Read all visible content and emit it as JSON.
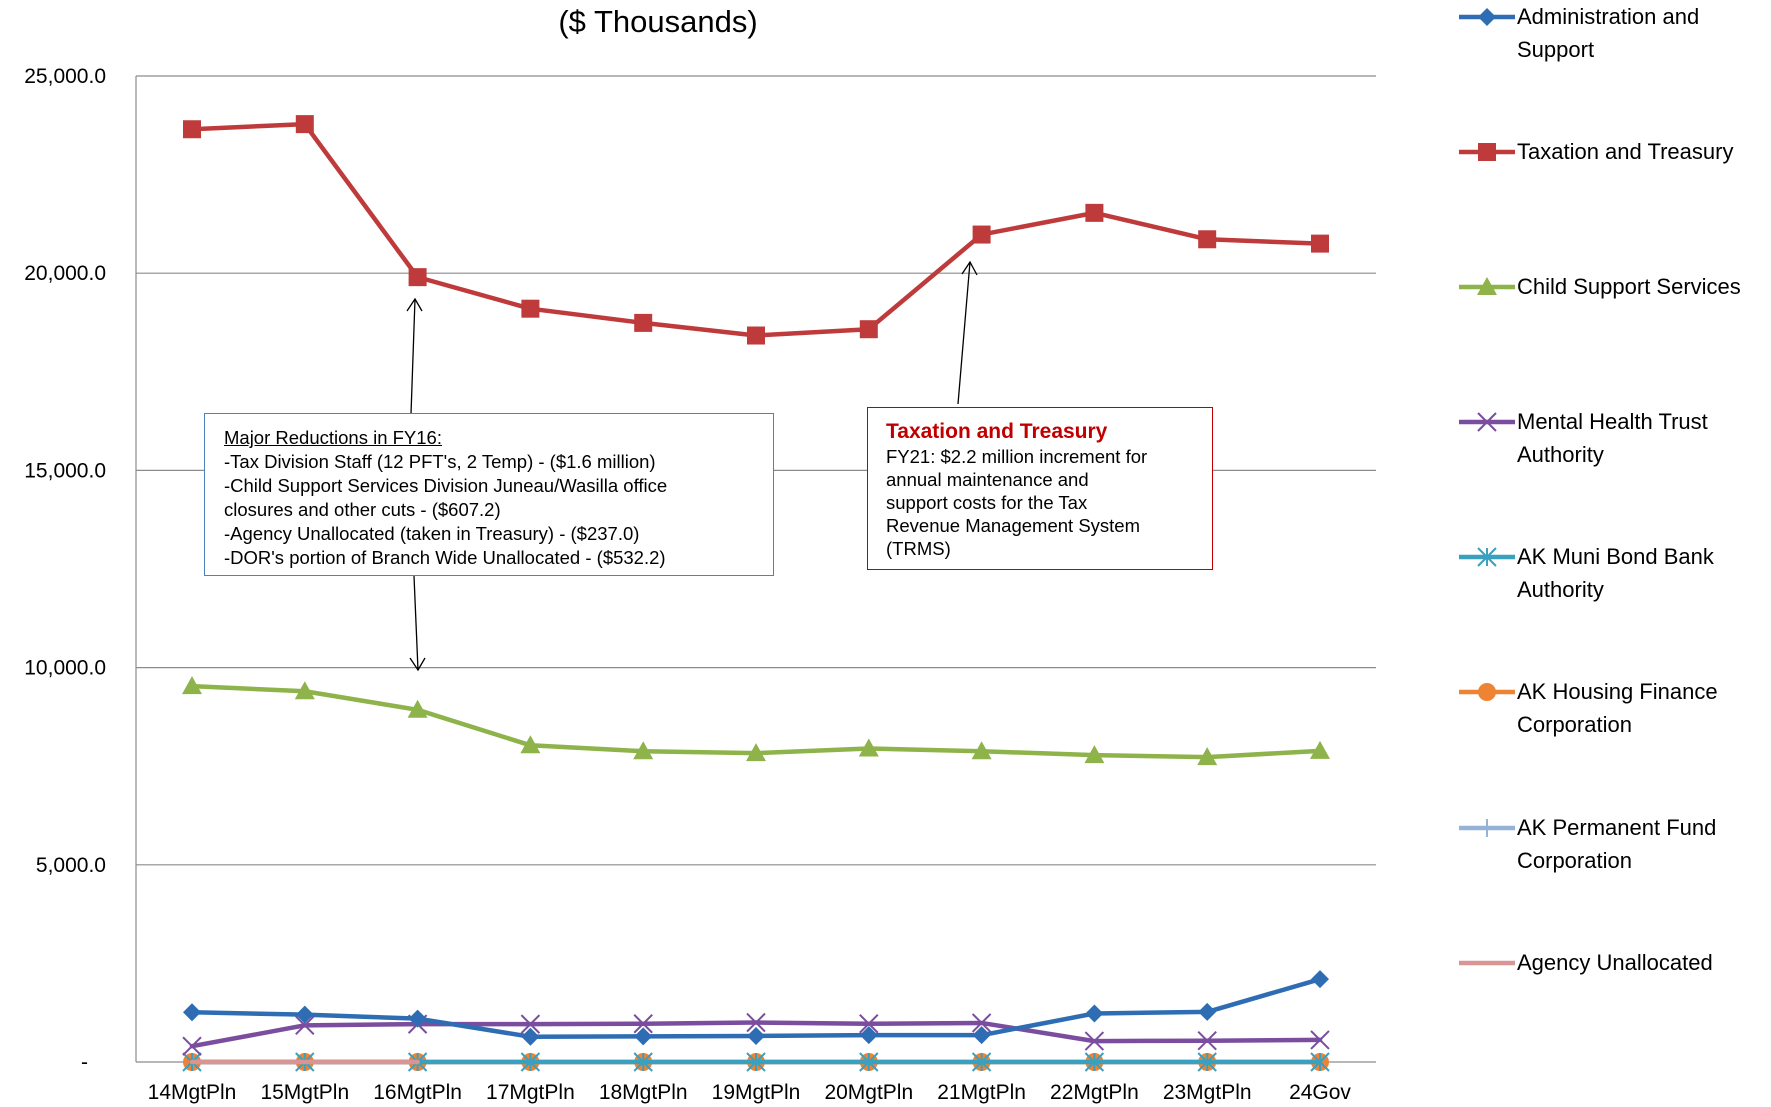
{
  "chart_data": {
    "type": "line",
    "subtitle": "($ Thousands)",
    "categories": [
      "14MgtPln",
      "15MgtPln",
      "16MgtPln",
      "17MgtPln",
      "18MgtPln",
      "19MgtPln",
      "20MgtPln",
      "21MgtPln",
      "22MgtPln",
      "23MgtPln",
      "24Gov"
    ],
    "ylim": [
      0,
      25000
    ],
    "yticks": [
      0,
      5000,
      10000,
      15000,
      20000,
      25000
    ],
    "ytick_labels": [
      "-",
      "5,000.0",
      "10,000.0",
      "15,000.0",
      "20,000.0",
      "25,000.0"
    ],
    "grid": true,
    "legend_position": "right",
    "series": [
      {
        "name": "Administration and Support",
        "color": "#2e6db4",
        "marker": "diamond",
        "values": [
          1260,
          1200,
          1100,
          640,
          650,
          660,
          680,
          680,
          1230,
          1270,
          2100
        ]
      },
      {
        "name": "Taxation and Treasury",
        "color": "#bf3b3b",
        "marker": "square",
        "values": [
          23650,
          23780,
          19900,
          19100,
          18740,
          18420,
          18580,
          20980,
          21530,
          20860,
          20750
        ]
      },
      {
        "name": "Child Support Services",
        "color": "#8db34a",
        "marker": "triangle",
        "values": [
          9530,
          9400,
          8930,
          8030,
          7880,
          7830,
          7950,
          7880,
          7780,
          7730,
          7890
        ]
      },
      {
        "name": "Mental Health Trust Authority",
        "color": "#7a4d9e",
        "marker": "x",
        "values": [
          400,
          930,
          960,
          960,
          970,
          1000,
          970,
          990,
          530,
          540,
          560
        ]
      },
      {
        "name": "AK Muni Bond Bank Authority",
        "color": "#3aa0c0",
        "marker": "star",
        "values": [
          0,
          0,
          0,
          0,
          0,
          0,
          0,
          0,
          0,
          0,
          0
        ]
      },
      {
        "name": "AK Housing Finance Corporation",
        "color": "#ee8433",
        "marker": "circle",
        "values": [
          0,
          0,
          0,
          0,
          0,
          0,
          0,
          0,
          0,
          0,
          0
        ]
      },
      {
        "name": "AK Permanent Fund Corporation",
        "color": "#95b3d7",
        "marker": "plus",
        "values": [
          0,
          0,
          0,
          0,
          0,
          0,
          0,
          0,
          0,
          0,
          0
        ]
      },
      {
        "name": "Agency Unallocated",
        "color": "#d99594",
        "marker": "none",
        "values": [
          0,
          0,
          0,
          null,
          null,
          null,
          null,
          null,
          null,
          null,
          null
        ]
      }
    ],
    "annotations": [
      {
        "title": "Major Reductions in FY16:",
        "lines": [
          "-Tax Division Staff (12 PFT's, 2 Temp) - ($1.6 million)",
          "-Child Support Services Division Juneau/Wasilla office",
          "closures and other cuts - ($607.2)",
          "-Agency Unallocated (taken in Treasury) - ($237.0)",
          "-DOR's portion of Branch Wide Unallocated - ($532.2)"
        ]
      },
      {
        "title": "Taxation and Treasury",
        "lines": [
          "FY21: $2.2 million increment for",
          "annual maintenance and",
          "support costs for the Tax",
          "Revenue Management System",
          "(TRMS)"
        ]
      }
    ]
  }
}
